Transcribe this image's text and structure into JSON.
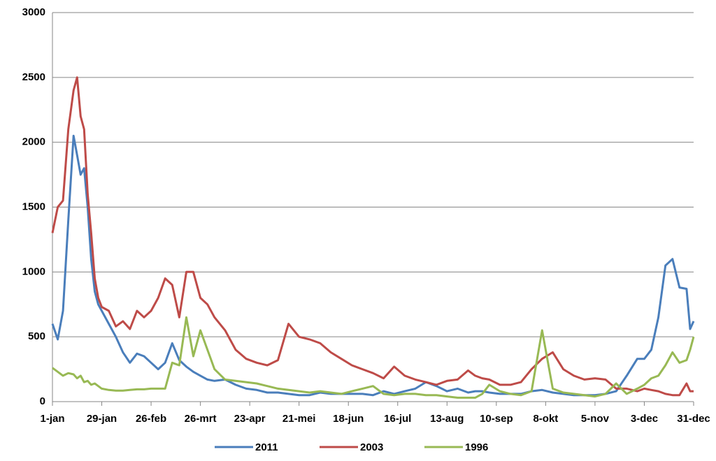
{
  "chart_data": {
    "type": "line",
    "x": [
      0,
      3,
      6,
      9,
      12,
      14,
      16,
      18,
      20,
      22,
      24,
      26,
      28,
      32,
      36,
      40,
      44,
      48,
      52,
      56,
      60,
      64,
      68,
      72,
      76,
      80,
      84,
      88,
      92,
      98,
      104,
      110,
      116,
      122,
      128,
      134,
      140,
      146,
      152,
      158,
      164,
      170,
      176,
      182,
      188,
      194,
      200,
      206,
      212,
      218,
      224,
      230,
      236,
      240,
      244,
      248,
      254,
      260,
      266,
      272,
      278,
      284,
      290,
      296,
      302,
      308,
      314,
      320,
      326,
      332,
      336,
      340,
      344,
      348,
      352,
      356,
      360,
      362,
      364
    ],
    "series": [
      {
        "name": "2011",
        "color": "#4a7ebb",
        "values": [
          600,
          480,
          700,
          1400,
          2050,
          1900,
          1750,
          1800,
          1500,
          1100,
          850,
          750,
          700,
          600,
          500,
          380,
          300,
          370,
          350,
          300,
          250,
          300,
          450,
          320,
          270,
          230,
          200,
          170,
          160,
          170,
          130,
          100,
          90,
          70,
          70,
          60,
          50,
          50,
          70,
          60,
          60,
          60,
          60,
          50,
          80,
          60,
          80,
          100,
          150,
          120,
          80,
          100,
          70,
          80,
          80,
          70,
          60,
          60,
          60,
          80,
          90,
          70,
          60,
          50,
          50,
          50,
          60,
          80,
          200,
          330,
          330,
          400,
          650,
          1050,
          1100,
          880,
          870,
          560,
          620
        ]
      },
      {
        "name": "2003",
        "color": "#be4b48",
        "values": [
          1300,
          1500,
          1550,
          2100,
          2400,
          2500,
          2200,
          2100,
          1600,
          1300,
          950,
          800,
          730,
          700,
          580,
          620,
          560,
          700,
          650,
          700,
          800,
          950,
          900,
          650,
          1000,
          1000,
          800,
          750,
          650,
          550,
          400,
          330,
          300,
          280,
          320,
          600,
          500,
          480,
          450,
          380,
          330,
          280,
          250,
          220,
          180,
          270,
          200,
          170,
          150,
          130,
          160,
          170,
          240,
          200,
          180,
          170,
          130,
          130,
          150,
          250,
          330,
          380,
          250,
          200,
          170,
          180,
          170,
          100,
          100,
          80,
          100,
          90,
          80,
          60,
          50,
          50,
          140,
          80,
          80
        ]
      },
      {
        "name": "1996",
        "color": "#98b954",
        "values": [
          260,
          230,
          200,
          220,
          210,
          180,
          200,
          150,
          160,
          130,
          140,
          120,
          100,
          90,
          85,
          85,
          90,
          95,
          95,
          100,
          100,
          100,
          300,
          280,
          650,
          350,
          550,
          400,
          250,
          170,
          160,
          150,
          140,
          120,
          100,
          90,
          80,
          70,
          80,
          70,
          60,
          80,
          100,
          120,
          60,
          50,
          60,
          60,
          50,
          50,
          40,
          30,
          30,
          30,
          60,
          130,
          80,
          60,
          50,
          80,
          550,
          100,
          70,
          60,
          50,
          40,
          60,
          140,
          60,
          100,
          130,
          180,
          200,
          280,
          380,
          300,
          320,
          400,
          500
        ]
      }
    ],
    "xlim": [
      0,
      364
    ],
    "xticks": [
      {
        "value": 0,
        "label": "1-jan"
      },
      {
        "value": 28,
        "label": "29-jan"
      },
      {
        "value": 56,
        "label": "26-feb"
      },
      {
        "value": 84,
        "label": "26-mrt"
      },
      {
        "value": 112,
        "label": "23-apr"
      },
      {
        "value": 140,
        "label": "21-mei"
      },
      {
        "value": 168,
        "label": "18-jun"
      },
      {
        "value": 196,
        "label": "16-jul"
      },
      {
        "value": 224,
        "label": "13-aug"
      },
      {
        "value": 252,
        "label": "10-sep"
      },
      {
        "value": 280,
        "label": "8-okt"
      },
      {
        "value": 308,
        "label": "5-nov"
      },
      {
        "value": 336,
        "label": "3-dec"
      },
      {
        "value": 364,
        "label": "31-dec"
      }
    ],
    "ylim": [
      0,
      3000
    ],
    "yticks": [
      0,
      500,
      1000,
      1500,
      2000,
      2500,
      3000
    ],
    "grid": true,
    "legend": "bottom"
  }
}
